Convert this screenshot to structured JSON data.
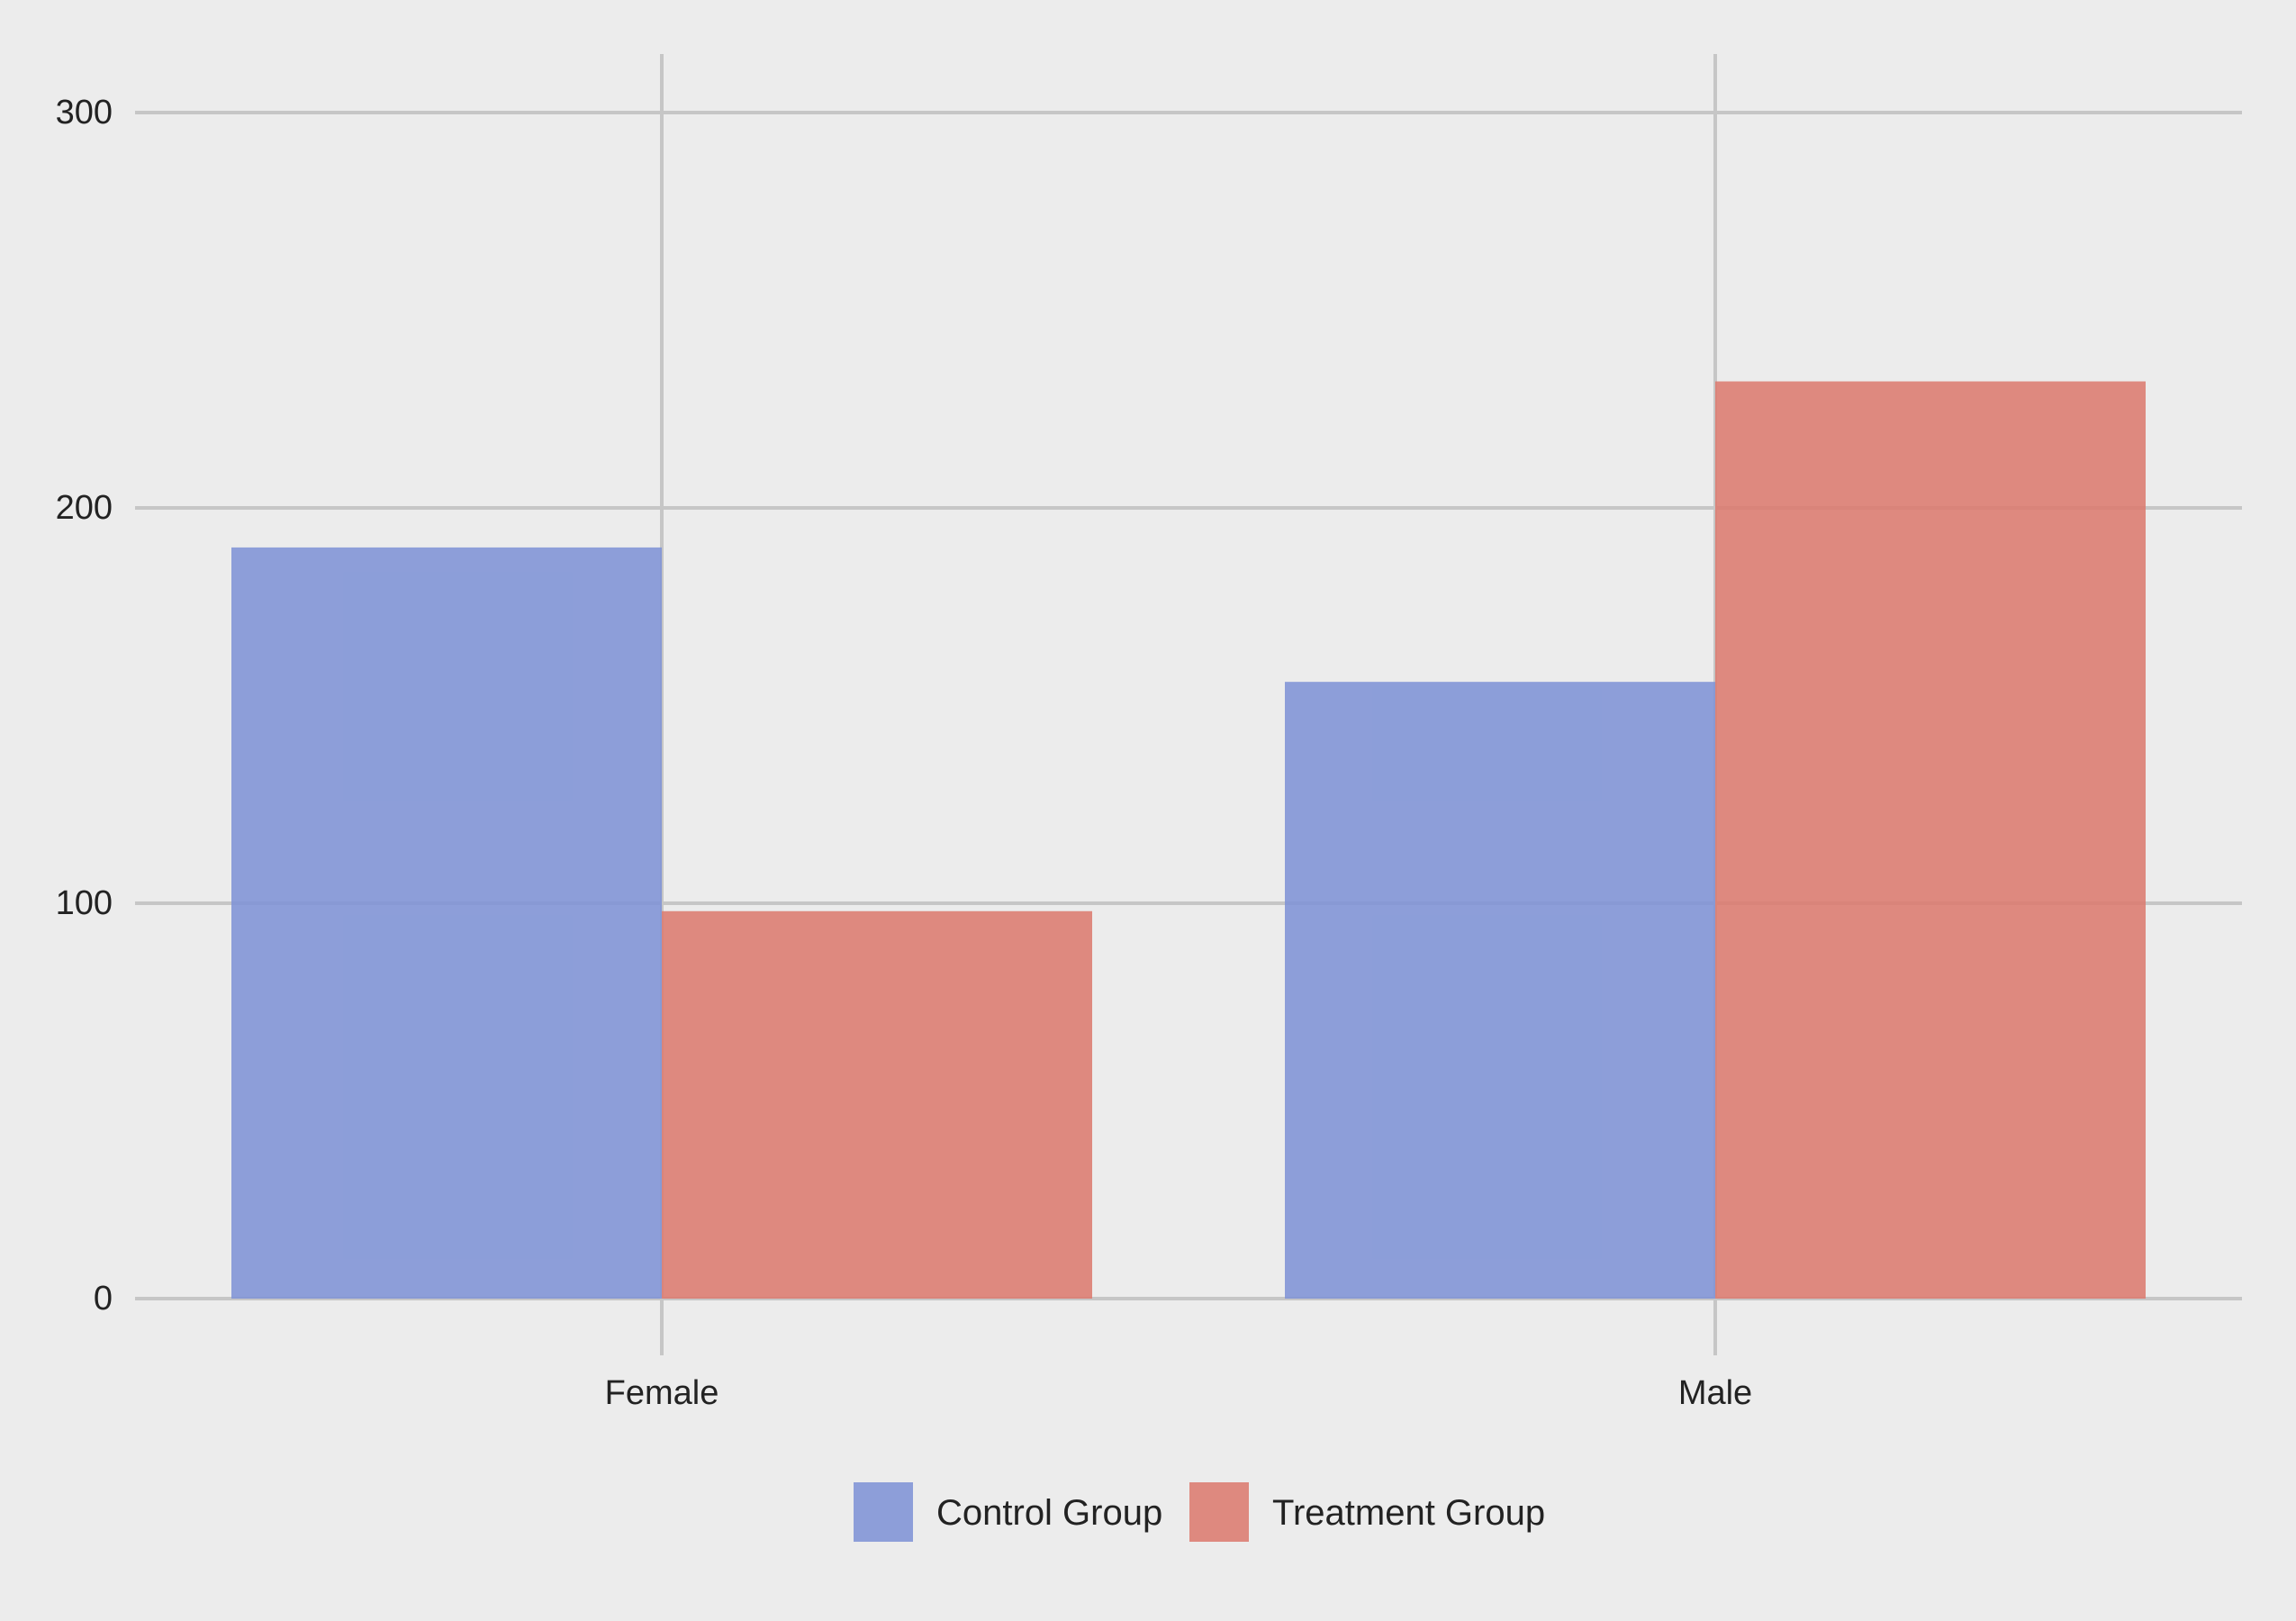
{
  "chart_data": {
    "type": "bar",
    "title": "",
    "xlabel": "",
    "ylabel": "",
    "categories": [
      "Female",
      "Male"
    ],
    "series": [
      {
        "name": "Control Group",
        "color": "#7f93d6",
        "values": [
          190,
          156
        ]
      },
      {
        "name": "Treatment Group",
        "color": "#dc7b70",
        "values": [
          98,
          232
        ]
      }
    ],
    "yticks": [
      0,
      100,
      200,
      300
    ],
    "ylim": [
      0,
      315
    ],
    "grid": true,
    "legend": "bottom-center"
  }
}
